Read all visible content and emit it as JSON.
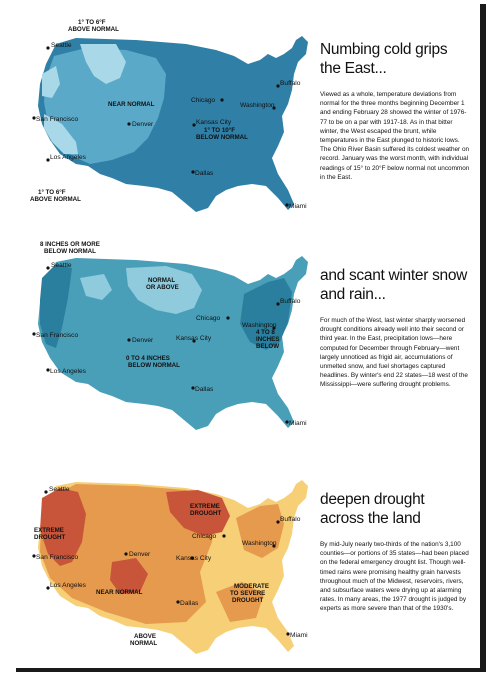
{
  "sections": [
    {
      "headline": "Numbing cold grips the East...",
      "body": "Viewed as a whole, temperature deviations from normal for the three months beginning December 1 and ending February 28 showed the winter of 1976-77 to be on a par with 1917-18. As in that bitter winter, the West escaped the brunt, while temperatures in the East plunged to historic lows. The Ohio River Basin suffered its coldest weather on record. January was the worst month, with individual readings of 15° to 20°F below normal not uncommon in the East.",
      "map_labels": {
        "top_left_1": "1° TO 6°F",
        "top_left_2": "ABOVE NORMAL",
        "near_normal": "NEAR NORMAL",
        "below_1": "1° TO 10°F",
        "below_2": "BELOW NORMAL",
        "bottom_left_1": "1° TO 6°F",
        "bottom_left_2": "ABOVE NORMAL"
      },
      "colors": {
        "dark": "#2f7fa6",
        "mid": "#5ba9c8",
        "light": "#a9d9e8"
      }
    },
    {
      "headline": "and scant winter snow and rain...",
      "body": "For much of the West, last winter sharply worsened drought conditions already well into their second or third year. In the East, precipitation lows—here computed for December through February—went largely unnoticed as frigid air, accumulations of unmelted snow, and fuel shortages captured headlines. By winter's end 22 states—18 west of the Mississippi—were suffering drought problems.",
      "map_labels": {
        "top_1": "8 INCHES OR MORE",
        "top_2": "BELOW NORMAL",
        "normal_1": "NORMAL",
        "normal_2": "OR ABOVE",
        "mid_1": "0 TO 4 INCHES",
        "mid_2": "BELOW NORMAL",
        "east_1": "4 TO 8",
        "east_2": "INCHES",
        "east_3": "BELOW"
      },
      "colors": {
        "dark": "#2a7f9e",
        "mid": "#4a9fb8",
        "light": "#8fcbdc"
      }
    },
    {
      "headline": "deepen drought across the land",
      "body": "By mid-July nearly two-thirds of the nation's 3,100 counties—or portions of 35 states—had been placed on the federal emergency drought list. Though well-timed rains were promising healthy grain harvests throughout much of the Midwest, reservoirs, rivers, and subsurface waters were drying up at alarming rates. In many areas, the 1977 drought is judged by experts as more severe than that of the 1930's.",
      "map_labels": {
        "extreme_w_1": "EXTREME",
        "extreme_w_2": "DROUGHT",
        "extreme_c_1": "EXTREME",
        "extreme_c_2": "DROUGHT",
        "near_normal": "NEAR NORMAL",
        "moderate_1": "MODERATE",
        "moderate_2": "TO SEVERE",
        "moderate_3": "DROUGHT",
        "above_1": "ABOVE",
        "above_2": "NORMAL"
      },
      "colors": {
        "dark": "#c8553a",
        "mid": "#e59a4d",
        "light": "#f6cf77"
      }
    }
  ],
  "cities": {
    "seattle": "Seattle",
    "san_francisco": "San Francisco",
    "los_angeles": "Los Angeles",
    "denver": "Denver",
    "kansas_city": "Kansas City",
    "chicago": "Chicago",
    "washington": "Washington",
    "buffalo": "Buffalo",
    "dallas": "Dallas",
    "miami": "Miami"
  }
}
